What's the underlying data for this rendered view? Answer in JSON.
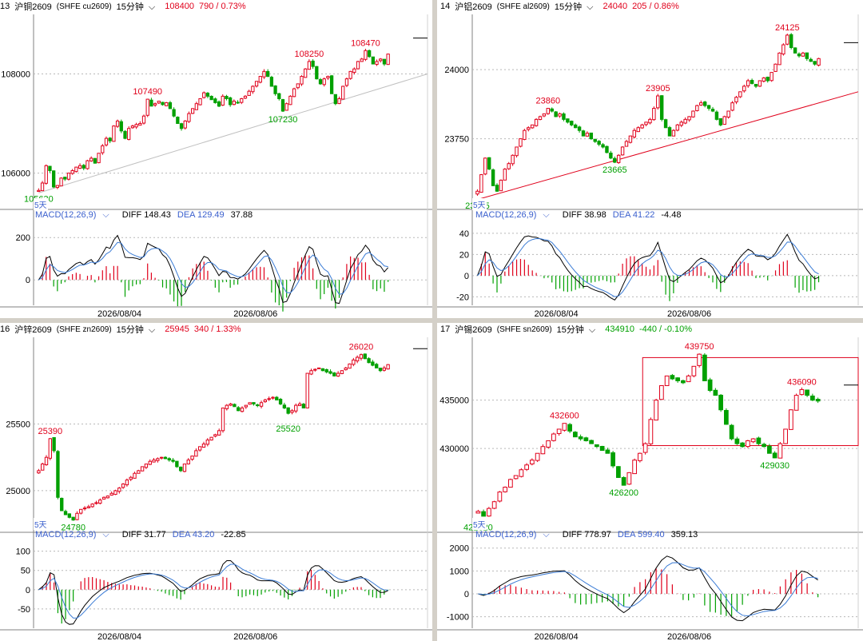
{
  "colors": {
    "up": "#e0001b",
    "down": "#00a000",
    "dea": "#3a7bd5",
    "diff": "#000000",
    "grid": "#b8b8b8"
  },
  "panels": [
    {
      "index": "13",
      "name": "沪铜2609",
      "code": "(SHFE cu2609)",
      "period": "15分钟",
      "price": "108400",
      "change": "790 / 0.73%",
      "change_sign": "up",
      "ylabels": [
        {
          "v": 108000,
          "t": "108000"
        },
        {
          "v": 106000,
          "t": "106000"
        }
      ],
      "yrange": [
        105300,
        109200
      ],
      "closes": [
        105650,
        105800,
        106150,
        106050,
        105720,
        105750,
        105900,
        105880,
        106000,
        106050,
        106120,
        106150,
        106100,
        106250,
        106300,
        106200,
        106400,
        106550,
        106700,
        106650,
        106950,
        107050,
        106850,
        106700,
        106900,
        106950,
        106980,
        107000,
        107150,
        107490,
        107350,
        107400,
        107450,
        107380,
        107420,
        107300,
        107150,
        107000,
        106900,
        107050,
        107200,
        107300,
        107400,
        107500,
        107620,
        107550,
        107480,
        107420,
        107350,
        107550,
        107500,
        107380,
        107450,
        107420,
        107500,
        107550,
        107650,
        107750,
        107850,
        107950,
        108050,
        107950,
        107750,
        107600,
        107500,
        107250,
        107400,
        107550,
        107700,
        107800,
        107950,
        108100,
        108250,
        108150,
        107900,
        107800,
        107900,
        107950,
        107600,
        107400,
        107500,
        107750,
        107900,
        108050,
        108100,
        108250,
        108300,
        108470,
        108350,
        108200,
        108250,
        108300,
        108200,
        108400
      ],
      "gap_at": [
        35
      ],
      "labels": [
        {
          "i": 0,
          "v": 105630,
          "t": "105630",
          "c": "down",
          "pos": "below"
        },
        {
          "i": 29,
          "v": 107490,
          "t": "107490",
          "c": "up",
          "pos": "above"
        },
        {
          "i": 65,
          "v": 107230,
          "t": "107230",
          "c": "down",
          "pos": "below"
        },
        {
          "i": 72,
          "v": 108250,
          "t": "108250",
          "c": "up",
          "pos": "above"
        },
        {
          "i": 87,
          "v": 108470,
          "t": "108470",
          "c": "up",
          "pos": "above"
        }
      ],
      "trendline": {
        "from": [
          0,
          105600
        ],
        "to": [
          110,
          108000
        ],
        "color": "#c0c0c0"
      },
      "days": "5天",
      "macd": {
        "label": "MACD(12,26,9)",
        "diff": "DIFF 148.43",
        "dea": "DEA 129.49",
        "macd": "37.88",
        "ylabels": [
          {
            "v": 200,
            "t": "200"
          },
          {
            "v": 0,
            "t": "0"
          }
        ],
        "yrange": [
          -120,
          280
        ]
      },
      "dates": [
        "2026/08/04",
        "2026/08/06"
      ]
    },
    {
      "index": "14",
      "name": "沪铝2609",
      "code": "(SHFE al2609)",
      "period": "15分钟",
      "price": "24040",
      "change": "205 / 0.86%",
      "change_sign": "up",
      "ylabels": [
        {
          "v": 24000,
          "t": "24000"
        },
        {
          "v": 23750,
          "t": "23750"
        }
      ],
      "yrange": [
        23500,
        24200
      ],
      "closes": [
        23560,
        23620,
        23680,
        23640,
        23580,
        23560,
        23600,
        23640,
        23660,
        23690,
        23720,
        23750,
        23780,
        23790,
        23800,
        23820,
        23830,
        23840,
        23860,
        23850,
        23830,
        23840,
        23820,
        23810,
        23800,
        23790,
        23780,
        23760,
        23770,
        23750,
        23740,
        23730,
        23720,
        23700,
        23680,
        23665,
        23690,
        23720,
        23740,
        23760,
        23780,
        23790,
        23800,
        23810,
        23820,
        23860,
        23905,
        23820,
        23790,
        23760,
        23780,
        23800,
        23810,
        23820,
        23830,
        23850,
        23870,
        23880,
        23870,
        23860,
        23850,
        23820,
        23800,
        23830,
        23850,
        23880,
        23900,
        23920,
        23940,
        23960,
        23950,
        23940,
        23960,
        23970,
        23960,
        23990,
        24020,
        24060,
        24090,
        24125,
        24080,
        24060,
        24050,
        24060,
        24040,
        24030,
        24020,
        24040
      ],
      "gap_at": [],
      "labels": [
        {
          "i": 0,
          "v": 23535,
          "t": "23535",
          "c": "down",
          "pos": "below"
        },
        {
          "i": 18,
          "v": 23860,
          "t": "23860",
          "c": "up",
          "pos": "above"
        },
        {
          "i": 35,
          "v": 23665,
          "t": "23665",
          "c": "down",
          "pos": "below"
        },
        {
          "i": 46,
          "v": 23905,
          "t": "23905",
          "c": "up",
          "pos": "above"
        },
        {
          "i": 79,
          "v": 24125,
          "t": "24125",
          "c": "up",
          "pos": "above"
        }
      ],
      "trendline": {
        "from": [
          0,
          23530
        ],
        "to": [
          108,
          23920
        ],
        "color": "#e0001b"
      },
      "days": "5天",
      "macd": {
        "label": "MACD(12,26,9)",
        "diff": "DIFF 38.98",
        "dea": "DEA 41.22",
        "macd": "-4.48",
        "ylabels": [
          {
            "v": 40,
            "t": "40"
          },
          {
            "v": 20,
            "t": "20"
          },
          {
            "v": 0,
            "t": "0"
          },
          {
            "v": -20,
            "t": "-20"
          }
        ],
        "yrange": [
          -28,
          52
        ]
      },
      "dates": [
        "2026/08/04",
        "2026/08/06"
      ]
    },
    {
      "index": "16",
      "name": "沪锌2609",
      "code": "(SHFE zn2609)",
      "period": "15分钟",
      "price": "25945",
      "change": "340 / 1.33%",
      "change_sign": "up",
      "ylabels": [
        {
          "v": 25500,
          "t": "25500"
        },
        {
          "v": 25000,
          "t": "25000"
        }
      ],
      "yrange": [
        24700,
        26150
      ],
      "closes": [
        25150,
        25200,
        25250,
        25390,
        25300,
        24950,
        24850,
        24820,
        24800,
        24780,
        24830,
        24860,
        24870,
        24880,
        24900,
        24910,
        24930,
        24950,
        24960,
        24980,
        25000,
        25020,
        25050,
        25080,
        25100,
        25130,
        25150,
        25180,
        25200,
        25220,
        25230,
        25240,
        25250,
        25240,
        25230,
        25220,
        25180,
        25150,
        25200,
        25230,
        25260,
        25300,
        25330,
        25350,
        25380,
        25400,
        25420,
        25450,
        25620,
        25640,
        25650,
        25630,
        25600,
        25620,
        25640,
        25660,
        25650,
        25640,
        25660,
        25680,
        25690,
        25700,
        25680,
        25650,
        25620,
        25580,
        25600,
        25640,
        25650,
        25620,
        25880,
        25900,
        25910,
        25920,
        25900,
        25890,
        25880,
        25860,
        25880,
        25900,
        25920,
        25950,
        25980,
        26000,
        26020,
        25990,
        25960,
        25940,
        25920,
        25900,
        25920,
        25945
      ],
      "gap_at": [
        48,
        70
      ],
      "labels": [
        {
          "i": 3,
          "v": 25390,
          "t": "25390",
          "c": "up",
          "pos": "above"
        },
        {
          "i": 9,
          "v": 24780,
          "t": "24780",
          "c": "down",
          "pos": "below"
        },
        {
          "i": 65,
          "v": 25520,
          "t": "25520",
          "c": "down",
          "pos": "below"
        },
        {
          "i": 84,
          "v": 26020,
          "t": "26020",
          "c": "up",
          "pos": "above"
        }
      ],
      "trendline": null,
      "days": "5天",
      "macd": {
        "label": "MACD(12,26,9)",
        "diff": "DIFF 31.77",
        "dea": "DEA 43.20",
        "macd": "-22.85",
        "ylabels": [
          {
            "v": 100,
            "t": "100"
          },
          {
            "v": 50,
            "t": "50"
          },
          {
            "v": 0,
            "t": "0"
          },
          {
            "v": -50,
            "t": "-50"
          }
        ],
        "yrange": [
          -100,
          120
        ]
      },
      "dates": [
        "2026/08/04",
        "2026/08/06"
      ]
    },
    {
      "index": "17",
      "name": "沪锡2609",
      "code": "(SHFE sn2609)",
      "period": "15分钟",
      "price": "434910",
      "change": "-440 / -0.10%",
      "change_sign": "down",
      "ylabels": [
        {
          "v": 435000,
          "t": "435000"
        },
        {
          "v": 430000,
          "t": "430000"
        }
      ],
      "yrange": [
        421500,
        441500
      ],
      "closes": [
        423500,
        423000,
        423800,
        424500,
        425500,
        426000,
        426800,
        427200,
        427800,
        428300,
        428800,
        429500,
        430200,
        430800,
        431500,
        432000,
        432600,
        431800,
        431200,
        431000,
        430800,
        430500,
        430200,
        429800,
        429500,
        428200,
        427000,
        426200,
        427500,
        428800,
        429500,
        430500,
        433000,
        435000,
        436500,
        437500,
        437200,
        437000,
        436800,
        437500,
        438500,
        439750,
        437000,
        436000,
        435500,
        434000,
        432500,
        431000,
        430500,
        430200,
        430800,
        431000,
        430500,
        430200,
        429500,
        429030,
        430500,
        432000,
        434000,
        435500,
        436090,
        435500,
        435000,
        434910
      ],
      "gap_at": [],
      "labels": [
        {
          "i": 0,
          "v": 422620,
          "t": "422620",
          "c": "down",
          "pos": "below"
        },
        {
          "i": 16,
          "v": 432600,
          "t": "432600",
          "c": "up",
          "pos": "above"
        },
        {
          "i": 27,
          "v": 426200,
          "t": "426200",
          "c": "down",
          "pos": "below"
        },
        {
          "i": 41,
          "v": 439750,
          "t": "439750",
          "c": "up",
          "pos": "above"
        },
        {
          "i": 55,
          "v": 429030,
          "t": "429030",
          "c": "down",
          "pos": "below"
        },
        {
          "i": 60,
          "v": 436090,
          "t": "436090",
          "c": "up",
          "pos": "above"
        }
      ],
      "box": {
        "from_i": 31,
        "to_i": 80,
        "top": 439400,
        "bottom": 430300,
        "color": "#e0001b"
      },
      "trendline": null,
      "days": "5天",
      "macd": {
        "label": "MACD(12,26,9)",
        "diff": "DIFF 778.97",
        "dea": "DEA 599.40",
        "macd": "359.13",
        "ylabels": [
          {
            "v": 2000,
            "t": "2000"
          },
          {
            "v": 1000,
            "t": "1000"
          },
          {
            "v": 0,
            "t": "0"
          },
          {
            "v": -1000,
            "t": "-1000"
          }
        ],
        "yrange": [
          -1500,
          2200
        ]
      },
      "dates": [
        "2026/08/04",
        "2026/08/06"
      ]
    }
  ]
}
